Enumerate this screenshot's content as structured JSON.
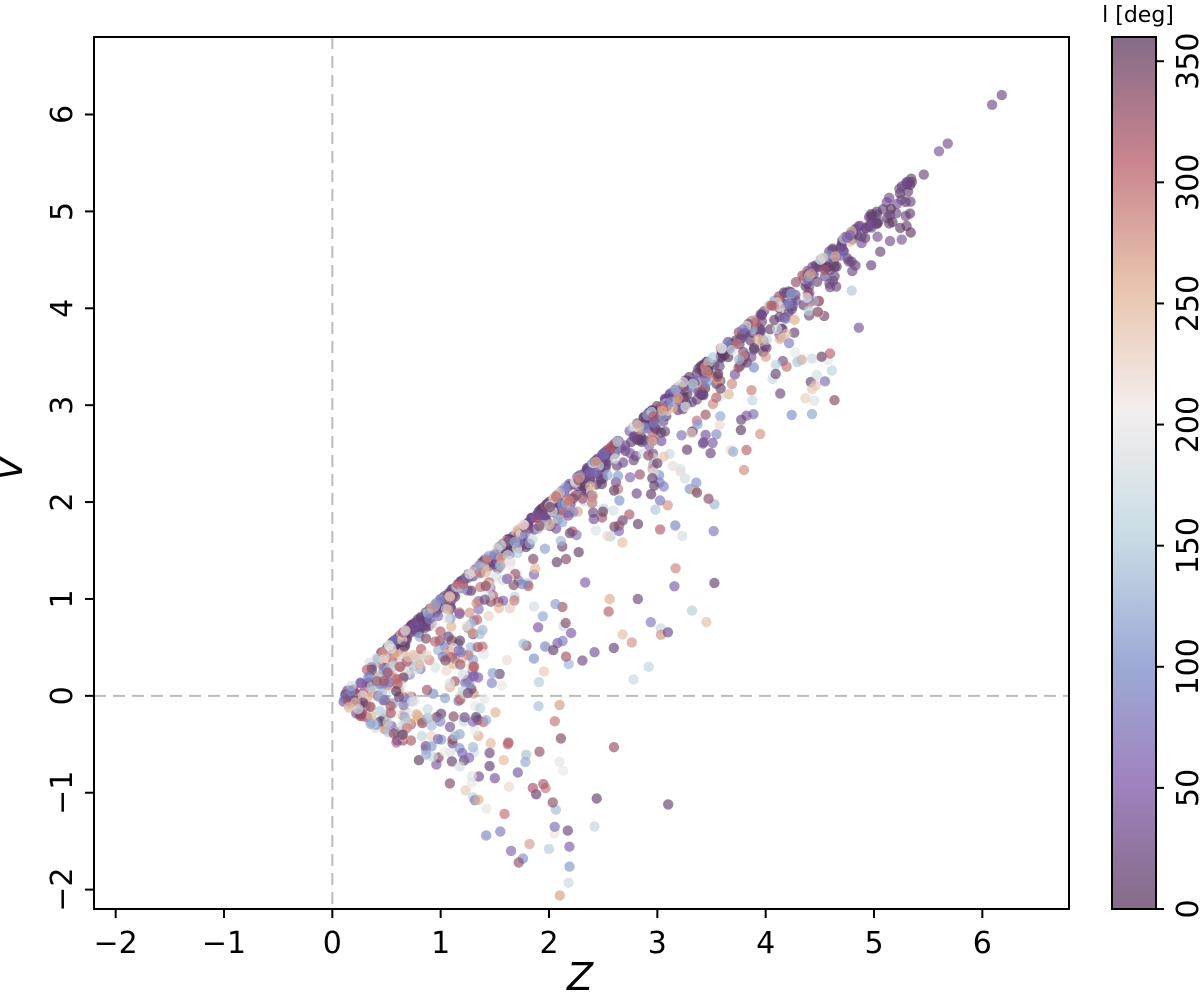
{
  "chart_data": {
    "type": "scatter",
    "xlabel": "Z",
    "ylabel": "V",
    "xlim": [
      -2.2,
      6.8
    ],
    "ylim": [
      -2.2,
      6.8
    ],
    "x_ticks": [
      -2,
      -1,
      0,
      1,
      2,
      3,
      4,
      5,
      6
    ],
    "y_ticks": [
      -2,
      -1,
      0,
      1,
      2,
      3,
      4,
      5,
      6
    ],
    "reference_lines": [
      {
        "axis": "x",
        "value": 0
      },
      {
        "axis": "y",
        "value": 0
      }
    ],
    "reference_line_color": "#bbbbbb",
    "grid": false,
    "colorbar": {
      "label": "l [deg]",
      "range": [
        0,
        360
      ],
      "ticks": [
        0,
        50,
        100,
        150,
        200,
        250,
        300,
        350
      ],
      "colormap": [
        "#5c3a5f",
        "#7d59a8",
        "#7e90c9",
        "#b7d1dc",
        "#efe9e8",
        "#e0b091",
        "#b85c6a",
        "#5c3a5f"
      ]
    },
    "marker_alpha": 0.65,
    "points": [
      [
        6.18,
        6.2,
        20
      ],
      [
        6.09,
        6.1,
        30
      ],
      [
        5.68,
        5.7,
        30
      ],
      [
        5.6,
        5.62,
        40
      ],
      [
        5.46,
        5.38,
        20
      ],
      [
        5.3,
        5.3,
        30
      ],
      [
        4.86,
        3.8,
        40
      ],
      [
        4.24,
        2.9,
        100
      ],
      [
        3.8,
        2.33,
        280
      ],
      [
        3.7,
        2.52,
        120
      ],
      [
        3.52,
        1.7,
        80
      ],
      [
        3.36,
        2.2,
        100
      ],
      [
        3.32,
        0.88,
        150
      ],
      [
        4.0,
        3.5,
        270
      ],
      [
        3.1,
        -1.12,
        10
      ],
      [
        2.94,
        0.76,
        80
      ],
      [
        2.92,
        0.3,
        160
      ],
      [
        2.78,
        0.17,
        170
      ],
      [
        2.6,
        -0.53,
        330
      ],
      [
        2.44,
        -1.06,
        10
      ],
      [
        2.42,
        -1.35,
        160
      ],
      [
        2.18,
        -1.93,
        170
      ],
      [
        2.1,
        -2.06,
        270
      ],
      [
        2.0,
        -1.58,
        150
      ],
      [
        1.82,
        -1.53,
        270
      ],
      [
        1.76,
        -1.68,
        100
      ],
      [
        1.72,
        -1.72,
        330
      ],
      [
        1.65,
        -1.6,
        60
      ],
      [
        1.55,
        -1.4,
        80
      ],
      [
        1.42,
        -1.44,
        90
      ],
      [
        1.85,
        -0.95,
        320
      ],
      [
        1.62,
        -0.5,
        300
      ],
      [
        1.5,
        -0.85,
        40
      ],
      [
        2.42,
        0.45,
        40
      ],
      [
        2.55,
        0.87,
        310
      ],
      [
        2.56,
        1.0,
        260
      ],
      [
        2.82,
        1.0,
        20
      ],
      [
        3.23,
        1.65,
        180
      ],
      [
        3.0,
        2.4,
        10
      ]
    ],
    "clusters": [
      {
        "zmin": 0.45,
        "zmax": 5.35,
        "depth": 0.25,
        "n": 520,
        "l_range": [
          0,
          40
        ],
        "seed": 11
      },
      {
        "zmin": 0.3,
        "zmax": 4.8,
        "depth": 0.8,
        "n": 380,
        "l_range": [
          0,
          360
        ],
        "seed": 23
      },
      {
        "zmin": 0.9,
        "zmax": 3.6,
        "depth": 1.7,
        "n": 140,
        "l_range": [
          0,
          360
        ],
        "seed": 37
      },
      {
        "lower_branch": true,
        "zmin": 0.1,
        "zmax": 1.4,
        "n": 240,
        "l_range": [
          0,
          360
        ],
        "seed": 51
      },
      {
        "lower_branch": true,
        "zmin": 1.2,
        "zmax": 2.2,
        "n": 60,
        "l_range": [
          0,
          360
        ],
        "seed": 67
      }
    ]
  }
}
